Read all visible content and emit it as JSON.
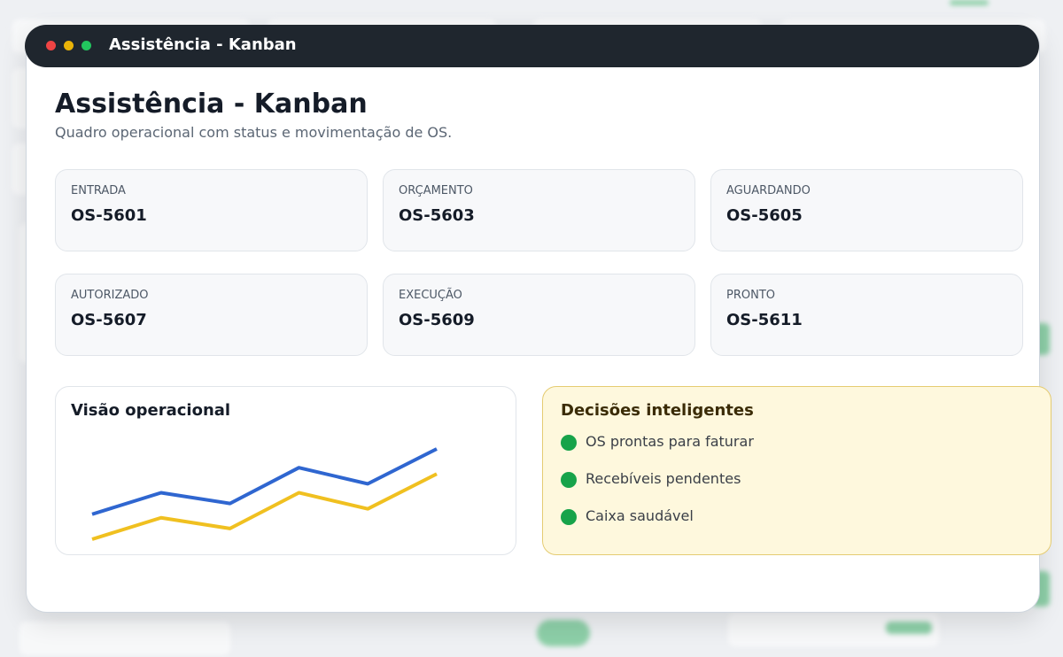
{
  "window": {
    "title": "Assistência - Kanban"
  },
  "header": {
    "title": "Assistência - Kanban",
    "subtitle": "Quadro operacional com status e movimentação de OS."
  },
  "cards": [
    {
      "label": "ENTRADA",
      "value": "OS-5601"
    },
    {
      "label": "ORÇAMENTO",
      "value": "OS-5603"
    },
    {
      "label": "AGUARDANDO",
      "value": "OS-5605"
    },
    {
      "label": "AUTORIZADO",
      "value": "OS-5607"
    },
    {
      "label": "EXECUÇÃO",
      "value": "OS-5609"
    },
    {
      "label": "PRONTO",
      "value": "OS-5611"
    }
  ],
  "chart": {
    "type": "line",
    "title": "Visão operacional",
    "series": [
      {
        "color": "#2f66d0",
        "values": [
          40,
          64,
          52,
          92,
          74,
          113
        ]
      },
      {
        "color": "#f0c020",
        "values": [
          12,
          36,
          24,
          64,
          46,
          85
        ]
      }
    ]
  },
  "decisions": {
    "title": "Decisões inteligentes",
    "items": [
      "OS prontas para faturar",
      "Recebíveis pendentes",
      "Caixa saudável"
    ]
  }
}
